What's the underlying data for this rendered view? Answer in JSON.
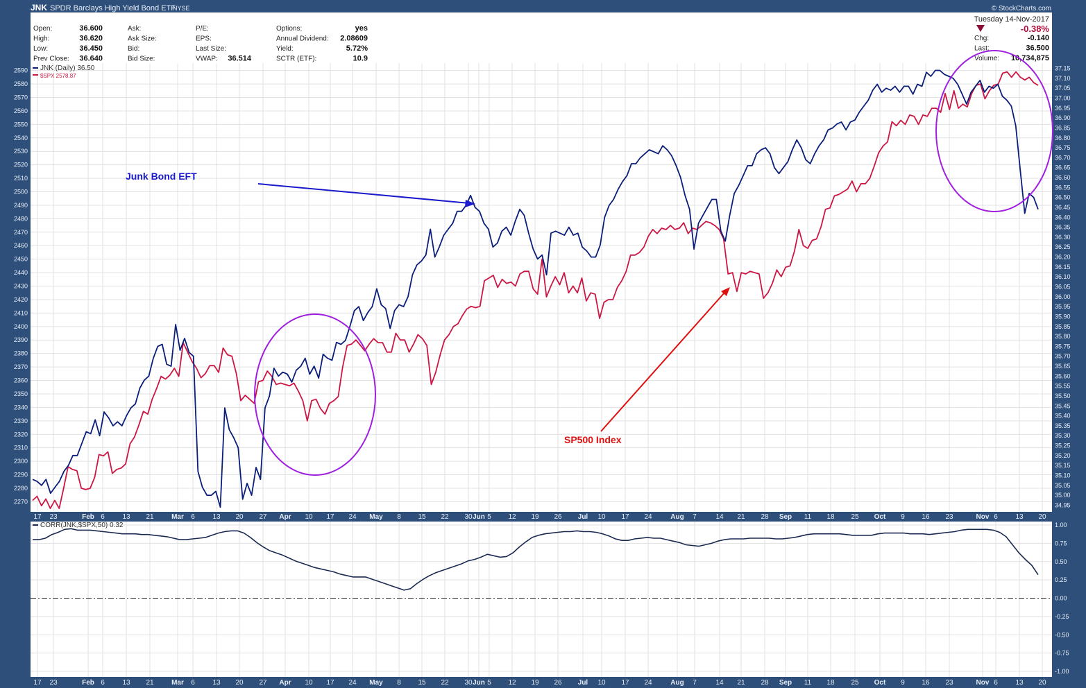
{
  "header": {
    "symbol": "JNK",
    "name": "SPDR Barclays High Yield Bond ETF",
    "exchange": "NYSE",
    "watermark": "© StockCharts.com",
    "date": "Tuesday  14-Nov-2017"
  },
  "quote": {
    "col1": [
      {
        "label": "Open:",
        "value": "36.600"
      },
      {
        "label": "High:",
        "value": "36.620"
      },
      {
        "label": "Low:",
        "value": "36.450"
      },
      {
        "label": "Prev Close:",
        "value": "36.640"
      }
    ],
    "col2": [
      {
        "label": "Ask:",
        "value": ""
      },
      {
        "label": "Ask Size:",
        "value": ""
      },
      {
        "label": "Bid:",
        "value": ""
      },
      {
        "label": "Bid Size:",
        "value": ""
      }
    ],
    "col3": [
      {
        "label": "P/E:",
        "value": ""
      },
      {
        "label": "EPS:",
        "value": ""
      },
      {
        "label": "Last Size:",
        "value": ""
      },
      {
        "label": "VWAP:",
        "value": "36.514"
      }
    ],
    "col4": [
      {
        "label": "Options:",
        "value": "yes"
      },
      {
        "label": "Annual Dividend:",
        "value": "2.08609"
      },
      {
        "label": "Yield:",
        "value": "5.72%"
      },
      {
        "label": "SCTR (ETF):",
        "value": "10.9"
      }
    ],
    "pct_change": "-0.38%",
    "right": [
      {
        "label": "Chg:",
        "value": "-0.140"
      },
      {
        "label": "Last:",
        "value": "36.500"
      },
      {
        "label": "Volume:",
        "value": "10,734,875"
      }
    ]
  },
  "colors": {
    "jnk": "#0b1f7a",
    "spx": "#cc1744",
    "corr": "#1a2a50",
    "annotation_blue": "#1a1acc",
    "annotation_red": "#e01010",
    "circle": "#a020e0",
    "frame": "#2e4f7a",
    "pct_change": "#b0103c"
  },
  "legend": {
    "jnk": "JNK (Daily) 36.50",
    "spx": "$SPX 2578.87",
    "corr": "CORR(JNK,$SPX,50) 0.32"
  },
  "annotations": {
    "junk": "Junk Bond EFT",
    "sp500": "SP500 Index"
  },
  "chart_data": [
    {
      "type": "line",
      "title": "JNK SPDR Barclays High Yield Bond ETF NYSE",
      "x_tick_labels": [
        "17",
        "23",
        "Feb",
        "6",
        "13",
        "21",
        "Mar",
        "6",
        "13",
        "20",
        "27",
        "Apr",
        "10",
        "17",
        "24",
        "May",
        "8",
        "15",
        "22",
        "30",
        "Jun",
        "5",
        "12",
        "19",
        "26",
        "Jul",
        "10",
        "17",
        "24",
        "Aug",
        "7",
        "14",
        "21",
        "28",
        "Sep",
        "11",
        "18",
        "25",
        "Oct",
        "9",
        "16",
        "23",
        "Nov",
        "6",
        "13",
        "20"
      ],
      "y_left_ticks": [
        2270,
        2280,
        2290,
        2300,
        2310,
        2320,
        2330,
        2340,
        2350,
        2360,
        2370,
        2380,
        2390,
        2400,
        2410,
        2420,
        2430,
        2440,
        2450,
        2460,
        2470,
        2480,
        2490,
        2500,
        2510,
        2520,
        2530,
        2540,
        2550,
        2560,
        2570,
        2580,
        2590
      ],
      "y_right_ticks": [
        "37.15",
        "37.10",
        "37.05",
        "37.00",
        "36.95",
        "36.90",
        "36.85",
        "36.80",
        "36.75",
        "36.70",
        "36.65",
        "36.60",
        "36.55",
        "36.50",
        "36.45",
        "36.40",
        "36.35",
        "36.30",
        "36.25",
        "36.20",
        "36.15",
        "36.10",
        "36.05",
        "36.00",
        "35.95",
        "35.90",
        "35.85",
        "35.80",
        "35.75",
        "35.70",
        "35.65",
        "35.60",
        "35.55",
        "35.50",
        "35.45",
        "35.40",
        "35.35",
        "35.30",
        "35.25",
        "35.20",
        "35.15",
        "35.10",
        "35.05",
        "35.00",
        "34.95"
      ],
      "ylim_left": [
        2263,
        2596
      ],
      "ylim_right": [
        34.92,
        37.18
      ],
      "grid": true,
      "legend_position": "top-left",
      "series": [
        {
          "name": "JNK (Daily) 36.50",
          "axis": "right",
          "values": [
            35.08,
            35.07,
            35.05,
            35.08,
            35.01,
            35.04,
            35.07,
            35.12,
            35.15,
            35.2,
            35.2,
            35.26,
            35.32,
            35.31,
            35.38,
            35.3,
            35.42,
            35.39,
            35.35,
            35.37,
            35.35,
            35.4,
            35.44,
            35.46,
            35.54,
            35.58,
            35.6,
            35.69,
            35.75,
            35.76,
            35.66,
            35.65,
            35.86,
            35.73,
            35.79,
            35.72,
            35.7,
            35.12,
            35.04,
            35.0,
            35.0,
            35.02,
            34.94,
            35.44,
            35.33,
            35.29,
            35.24,
            34.98,
            35.06,
            35.0,
            35.14,
            35.08,
            35.44,
            35.5,
            35.64,
            35.6,
            35.62,
            35.61,
            35.57,
            35.63,
            35.65,
            35.69,
            35.61,
            35.65,
            35.59,
            35.71,
            35.69,
            35.68,
            35.77,
            35.76,
            35.78,
            35.85,
            35.93,
            35.95,
            35.88,
            35.92,
            35.95,
            36.04,
            35.96,
            35.94,
            35.84,
            35.93,
            35.96,
            35.95,
            36.0,
            36.11,
            36.16,
            36.18,
            36.21,
            36.34,
            36.2,
            36.25,
            36.31,
            36.34,
            36.37,
            36.43,
            36.43,
            36.46,
            36.51,
            36.45,
            36.43,
            36.37,
            36.34,
            36.25,
            36.27,
            36.33,
            36.35,
            36.31,
            36.38,
            36.44,
            36.41,
            36.32,
            36.24,
            36.19,
            36.21,
            36.11,
            36.32,
            36.33,
            36.32,
            36.31,
            36.35,
            36.31,
            36.32,
            36.25,
            36.23,
            36.2,
            36.2,
            36.26,
            36.4,
            36.46,
            36.49,
            36.54,
            36.58,
            36.61,
            36.67,
            36.67,
            36.7,
            36.72,
            36.74,
            36.73,
            36.72,
            36.76,
            36.74,
            36.71,
            36.66,
            36.6,
            36.51,
            36.44,
            36.24,
            36.37,
            36.41,
            36.45,
            36.49,
            36.49,
            36.33,
            36.28,
            36.41,
            36.52,
            36.56,
            36.61,
            36.66,
            36.66,
            36.72,
            36.74,
            36.75,
            36.72,
            36.65,
            36.62,
            36.65,
            36.68,
            36.74,
            36.79,
            36.75,
            36.69,
            36.67,
            36.72,
            36.76,
            36.79,
            36.84,
            36.85,
            36.87,
            36.88,
            36.84,
            36.88,
            36.89,
            36.93,
            36.96,
            36.99,
            37.04,
            37.07,
            37.03,
            37.05,
            37.04,
            37.06,
            37.03,
            37.06,
            37.06,
            37.02,
            37.07,
            37.06,
            37.13,
            37.11,
            37.14,
            37.14,
            37.12,
            37.11,
            37.1,
            37.07,
            37.02,
            36.97,
            37.03,
            37.06,
            37.09,
            37.03,
            37.06,
            37.05,
            37.07,
            37.01,
            36.99,
            36.96,
            36.86,
            36.64,
            36.42,
            36.52,
            36.5,
            36.44
          ]
        },
        {
          "name": "$SPX 2578.87",
          "axis": "left",
          "values": [
            2271,
            2274,
            2267,
            2272,
            2265,
            2271,
            2265,
            2280,
            2296,
            2294,
            2293,
            2280,
            2279,
            2280,
            2288,
            2305,
            2304,
            2307,
            2291,
            2294,
            2295,
            2298,
            2313,
            2318,
            2327,
            2337,
            2335,
            2346,
            2354,
            2363,
            2361,
            2364,
            2369,
            2363,
            2388,
            2381,
            2374,
            2369,
            2362,
            2365,
            2371,
            2371,
            2366,
            2384,
            2379,
            2378,
            2365,
            2345,
            2349,
            2346,
            2343,
            2359,
            2360,
            2367,
            2363,
            2357,
            2358,
            2357,
            2356,
            2358,
            2352,
            2345,
            2330,
            2345,
            2346,
            2339,
            2335,
            2343,
            2345,
            2348,
            2370,
            2386,
            2387,
            2390,
            2386,
            2382,
            2387,
            2391,
            2388,
            2388,
            2381,
            2381,
            2395,
            2390,
            2390,
            2381,
            2387,
            2394,
            2391,
            2386,
            2357,
            2366,
            2379,
            2390,
            2394,
            2400,
            2402,
            2408,
            2413,
            2415,
            2414,
            2415,
            2434,
            2436,
            2438,
            2429,
            2435,
            2432,
            2433,
            2430,
            2439,
            2441,
            2441,
            2428,
            2424,
            2450,
            2422,
            2430,
            2437,
            2431,
            2440,
            2425,
            2430,
            2425,
            2436,
            2419,
            2425,
            2424,
            2406,
            2418,
            2420,
            2420,
            2429,
            2434,
            2441,
            2453,
            2453,
            2455,
            2459,
            2467,
            2472,
            2469,
            2473,
            2472,
            2475,
            2472,
            2473,
            2477,
            2469,
            2473,
            2472,
            2475,
            2478,
            2477,
            2475,
            2472,
            2465,
            2439,
            2440,
            2426,
            2440,
            2439,
            2441,
            2440,
            2439,
            2421,
            2425,
            2432,
            2442,
            2437,
            2444,
            2445,
            2456,
            2472,
            2460,
            2458,
            2464,
            2465,
            2474,
            2487,
            2488,
            2497,
            2498,
            2500,
            2502,
            2508,
            2500,
            2506,
            2506,
            2510,
            2519,
            2529,
            2534,
            2537,
            2552,
            2549,
            2553,
            2550,
            2557,
            2556,
            2550,
            2557,
            2556,
            2562,
            2562,
            2559,
            2573,
            2561,
            2575,
            2562,
            2565,
            2563,
            2573,
            2579,
            2580,
            2569,
            2575,
            2579,
            2580,
            2588,
            2589,
            2585,
            2589,
            2585,
            2583,
            2585,
            2581,
            2579
          ]
        },
        {
          "name": "CORR(JNK,$SPX,50) 0.32",
          "axis": "corr",
          "values": [
            0.8,
            0.8,
            0.82,
            0.87,
            0.9,
            0.94,
            0.95,
            0.93,
            0.93,
            0.93,
            0.92,
            0.91,
            0.9,
            0.89,
            0.88,
            0.88,
            0.88,
            0.87,
            0.87,
            0.86,
            0.85,
            0.84,
            0.82,
            0.8,
            0.8,
            0.81,
            0.82,
            0.83,
            0.86,
            0.89,
            0.91,
            0.92,
            0.92,
            0.89,
            0.83,
            0.76,
            0.7,
            0.65,
            0.62,
            0.59,
            0.55,
            0.51,
            0.48,
            0.45,
            0.42,
            0.4,
            0.38,
            0.36,
            0.33,
            0.31,
            0.29,
            0.29,
            0.29,
            0.26,
            0.23,
            0.2,
            0.17,
            0.14,
            0.11,
            0.13,
            0.2,
            0.26,
            0.31,
            0.35,
            0.38,
            0.41,
            0.44,
            0.47,
            0.51,
            0.53,
            0.56,
            0.6,
            0.58,
            0.56,
            0.57,
            0.62,
            0.7,
            0.77,
            0.83,
            0.86,
            0.88,
            0.89,
            0.9,
            0.91,
            0.91,
            0.92,
            0.91,
            0.91,
            0.9,
            0.88,
            0.85,
            0.81,
            0.79,
            0.79,
            0.81,
            0.82,
            0.83,
            0.82,
            0.82,
            0.8,
            0.78,
            0.76,
            0.73,
            0.72,
            0.71,
            0.73,
            0.75,
            0.78,
            0.8,
            0.81,
            0.81,
            0.81,
            0.82,
            0.82,
            0.82,
            0.82,
            0.81,
            0.81,
            0.82,
            0.83,
            0.85,
            0.87,
            0.88,
            0.88,
            0.88,
            0.88,
            0.88,
            0.87,
            0.86,
            0.86,
            0.86,
            0.86,
            0.88,
            0.89,
            0.89,
            0.89,
            0.89,
            0.88,
            0.88,
            0.88,
            0.87,
            0.88,
            0.89,
            0.9,
            0.91,
            0.93,
            0.94,
            0.94,
            0.94,
            0.94,
            0.93,
            0.9,
            0.84,
            0.73,
            0.62,
            0.53,
            0.45,
            0.32
          ]
        }
      ]
    },
    {
      "type": "line",
      "title": "CORR(JNK,$SPX,50) 0.32",
      "y_ticks": [
        "1.00",
        "0.75",
        "0.50",
        "0.25",
        "0.00",
        "-0.25",
        "-0.50",
        "-0.75",
        "-1.00"
      ],
      "ylim": [
        -1.0,
        1.0
      ],
      "grid": true
    }
  ]
}
